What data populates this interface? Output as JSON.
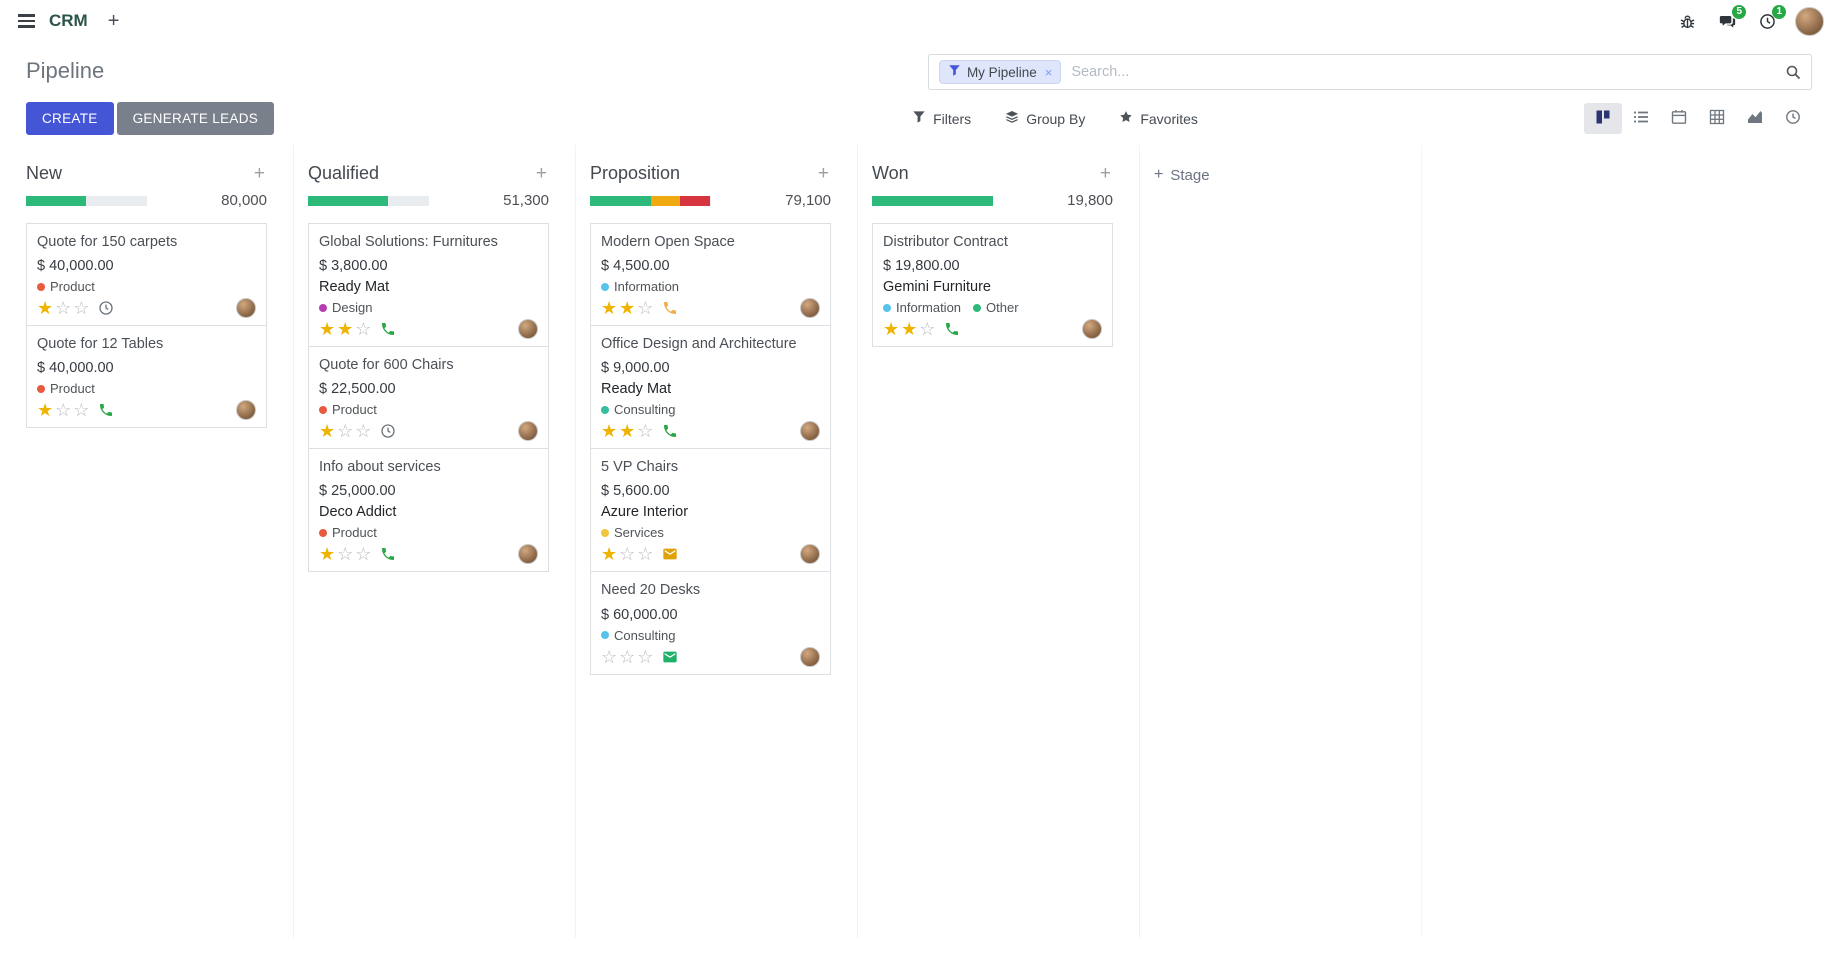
{
  "colors": {
    "primary": "#4455d6",
    "secondary": "#79808b",
    "star": "#efb300",
    "badge": "#28a745",
    "facet_bg": "#dfe5fa"
  },
  "icons": {
    "plus": "+",
    "close": "×",
    "star_filled": "★",
    "star_empty": "☆"
  },
  "navbar": {
    "app_name": "CRM",
    "message_badge": "5",
    "activity_badge": "1"
  },
  "control_panel": {
    "title": "Pipeline",
    "create_label": "CREATE",
    "generate_leads_label": "GENERATE LEADS",
    "filters_label": "Filters",
    "group_by_label": "Group By",
    "favorites_label": "Favorites",
    "search_facet": "My Pipeline",
    "search_placeholder": "Search..."
  },
  "board": {
    "add_stage_label": "Stage",
    "columns": [
      {
        "name": "New",
        "counter": "80,000",
        "progress": [
          {
            "color": "#2cb97a",
            "pct": 50
          }
        ],
        "cards": [
          {
            "title": "Quote for 150 carpets",
            "amount": "$ 40,000.00",
            "partner": "",
            "tags": [
              {
                "label": "Product",
                "color": "#e8593f"
              }
            ],
            "stars": 1,
            "activity": {
              "icon": "clock",
              "color": "#6c757d"
            }
          },
          {
            "title": "Quote for 12 Tables",
            "amount": "$ 40,000.00",
            "partner": "",
            "tags": [
              {
                "label": "Product",
                "color": "#e8593f"
              }
            ],
            "stars": 1,
            "activity": {
              "icon": "phone",
              "color": "#28a745"
            }
          }
        ]
      },
      {
        "name": "Qualified",
        "counter": "51,300",
        "progress": [
          {
            "color": "#2cb97a",
            "pct": 66
          }
        ],
        "cards": [
          {
            "title": "Global Solutions: Furnitures",
            "amount": "$ 3,800.00",
            "partner": "Ready Mat",
            "tags": [
              {
                "label": "Design",
                "color": "#b43db4"
              }
            ],
            "stars": 2,
            "activity": {
              "icon": "phone",
              "color": "#28a745"
            }
          },
          {
            "title": "Quote for 600 Chairs",
            "amount": "$ 22,500.00",
            "partner": "",
            "tags": [
              {
                "label": "Product",
                "color": "#e8593f"
              }
            ],
            "stars": 1,
            "activity": {
              "icon": "clock",
              "color": "#6c757d"
            }
          },
          {
            "title": "Info about services",
            "amount": "$ 25,000.00",
            "partner": "Deco Addict",
            "tags": [
              {
                "label": "Product",
                "color": "#e8593f"
              }
            ],
            "stars": 1,
            "activity": {
              "icon": "phone",
              "color": "#28a745"
            }
          }
        ]
      },
      {
        "name": "Proposition",
        "counter": "79,100",
        "progress": [
          {
            "color": "#2cb97a",
            "pct": 51
          },
          {
            "color": "#f0a90f",
            "pct": 24
          },
          {
            "color": "#d6353f",
            "pct": 25
          }
        ],
        "cards": [
          {
            "title": "Modern Open Space",
            "amount": "$ 4,500.00",
            "partner": "",
            "tags": [
              {
                "label": "Information",
                "color": "#55c3ea"
              }
            ],
            "stars": 2,
            "activity": {
              "icon": "phone",
              "color": "#f0ad4e"
            }
          },
          {
            "title": "Office Design and Architecture",
            "amount": "$ 9,000.00",
            "partner": "Ready Mat",
            "tags": [
              {
                "label": "Consulting",
                "color": "#35bd9d"
              }
            ],
            "stars": 2,
            "activity": {
              "icon": "phone",
              "color": "#28a745"
            }
          },
          {
            "title": "5 VP Chairs",
            "amount": "$ 5,600.00",
            "partner": "Azure Interior",
            "tags": [
              {
                "label": "Services",
                "color": "#f2c33c"
              }
            ],
            "stars": 1,
            "activity": {
              "icon": "envelope",
              "color": "#dfa206"
            }
          },
          {
            "title": "Need 20 Desks",
            "amount": "$ 60,000.00",
            "partner": "",
            "tags": [
              {
                "label": "Consulting",
                "color": "#55c3ea"
              }
            ],
            "stars": 0,
            "activity": {
              "icon": "envelope",
              "color": "#1fb167"
            }
          }
        ]
      },
      {
        "name": "Won",
        "counter": "19,800",
        "progress": [
          {
            "color": "#2cb97a",
            "pct": 100
          }
        ],
        "cards": [
          {
            "title": "Distributor Contract",
            "amount": "$ 19,800.00",
            "partner": "Gemini Furniture",
            "tags": [
              {
                "label": "Information",
                "color": "#55c3ea"
              },
              {
                "label": "Other",
                "color": "#2cb97a"
              }
            ],
            "stars": 2,
            "activity": {
              "icon": "phone",
              "color": "#28a745"
            }
          }
        ]
      }
    ]
  }
}
